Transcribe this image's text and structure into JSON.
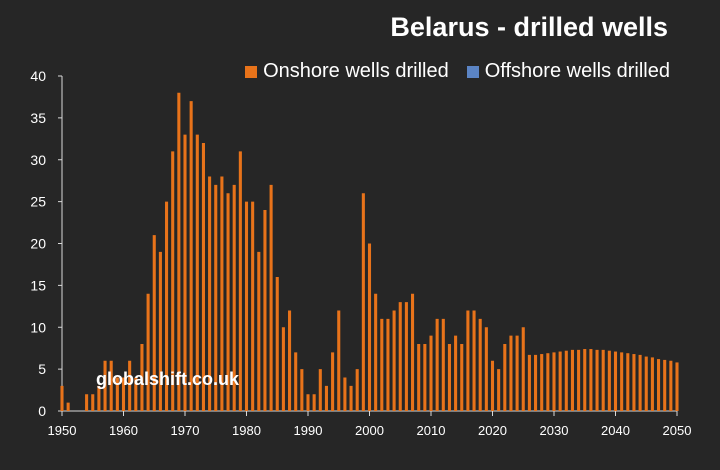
{
  "chart_data": {
    "type": "bar",
    "title": "Belarus - drilled wells",
    "watermark": "globalshift.co.uk",
    "xlabel": "",
    "ylabel": "",
    "ylim": [
      0,
      40
    ],
    "yticks": [
      0,
      5,
      10,
      15,
      20,
      25,
      30,
      35,
      40
    ],
    "xticks": [
      1950,
      1960,
      1970,
      1980,
      1990,
      2000,
      2010,
      2020,
      2030,
      2040,
      2050
    ],
    "x": [
      1950,
      1951,
      1952,
      1953,
      1954,
      1955,
      1956,
      1957,
      1958,
      1959,
      1960,
      1961,
      1962,
      1963,
      1964,
      1965,
      1966,
      1967,
      1968,
      1969,
      1970,
      1971,
      1972,
      1973,
      1974,
      1975,
      1976,
      1977,
      1978,
      1979,
      1980,
      1981,
      1982,
      1983,
      1984,
      1985,
      1986,
      1987,
      1988,
      1989,
      1990,
      1991,
      1992,
      1993,
      1994,
      1995,
      1996,
      1997,
      1998,
      1999,
      2000,
      2001,
      2002,
      2003,
      2004,
      2005,
      2006,
      2007,
      2008,
      2009,
      2010,
      2011,
      2012,
      2013,
      2014,
      2015,
      2016,
      2017,
      2018,
      2019,
      2020,
      2021,
      2022,
      2023,
      2024,
      2025,
      2026,
      2027,
      2028,
      2029,
      2030,
      2031,
      2032,
      2033,
      2034,
      2035,
      2036,
      2037,
      2038,
      2039,
      2040,
      2041,
      2042,
      2043,
      2044,
      2045,
      2046,
      2047,
      2048,
      2049,
      2050
    ],
    "legend": {
      "placement": "top-right",
      "entries": [
        {
          "label": "Onshore wells drilled",
          "color": "#e8731a"
        },
        {
          "label": "Offshore wells drilled",
          "color": "#5b84c4"
        }
      ]
    },
    "series": [
      {
        "name": "Onshore wells drilled",
        "color": "#e8731a",
        "values": [
          3,
          1,
          0,
          0,
          2,
          2,
          3,
          6,
          6,
          4,
          4,
          6,
          4,
          8,
          14,
          21,
          19,
          25,
          31,
          38,
          33,
          37,
          33,
          32,
          28,
          27,
          28,
          26,
          27,
          31,
          25,
          25,
          19,
          24,
          27,
          16,
          10,
          12,
          7,
          5,
          2,
          2,
          5,
          3,
          7,
          12,
          4,
          3,
          5,
          26,
          20,
          14,
          11,
          11,
          12,
          13,
          13,
          14,
          8,
          8,
          9,
          11,
          11,
          8,
          9,
          8,
          12,
          12,
          11,
          10,
          6,
          5,
          8,
          9,
          9,
          10,
          6.7,
          6.7,
          6.8,
          6.9,
          7.0,
          7.1,
          7.2,
          7.3,
          7.3,
          7.4,
          7.4,
          7.3,
          7.3,
          7.2,
          7.1,
          7.0,
          6.9,
          6.8,
          6.7,
          6.5,
          6.4,
          6.2,
          6.1,
          6.0,
          5.8
        ]
      },
      {
        "name": "Offshore wells drilled",
        "color": "#5b84c4",
        "values": [
          0,
          0,
          0,
          0,
          0,
          0,
          0,
          0,
          0,
          0,
          0,
          0,
          0,
          0,
          0,
          0,
          0,
          0,
          0,
          0,
          0,
          0,
          0,
          0,
          0,
          0,
          0,
          0,
          0,
          0,
          0,
          0,
          0,
          0,
          0,
          0,
          0,
          0,
          0,
          0,
          0,
          0,
          0,
          0,
          0,
          0,
          0,
          0,
          0,
          0,
          0,
          0,
          0,
          0,
          0,
          0,
          0,
          0,
          0,
          0,
          0,
          0,
          0,
          0,
          0,
          0,
          0,
          0,
          0,
          0,
          0,
          0,
          0,
          0,
          0,
          0,
          0,
          0,
          0,
          0,
          0,
          0,
          0,
          0,
          0,
          0,
          0,
          0,
          0,
          0,
          0,
          0,
          0,
          0,
          0,
          0,
          0,
          0,
          0,
          0,
          0
        ]
      }
    ],
    "grid": false
  }
}
